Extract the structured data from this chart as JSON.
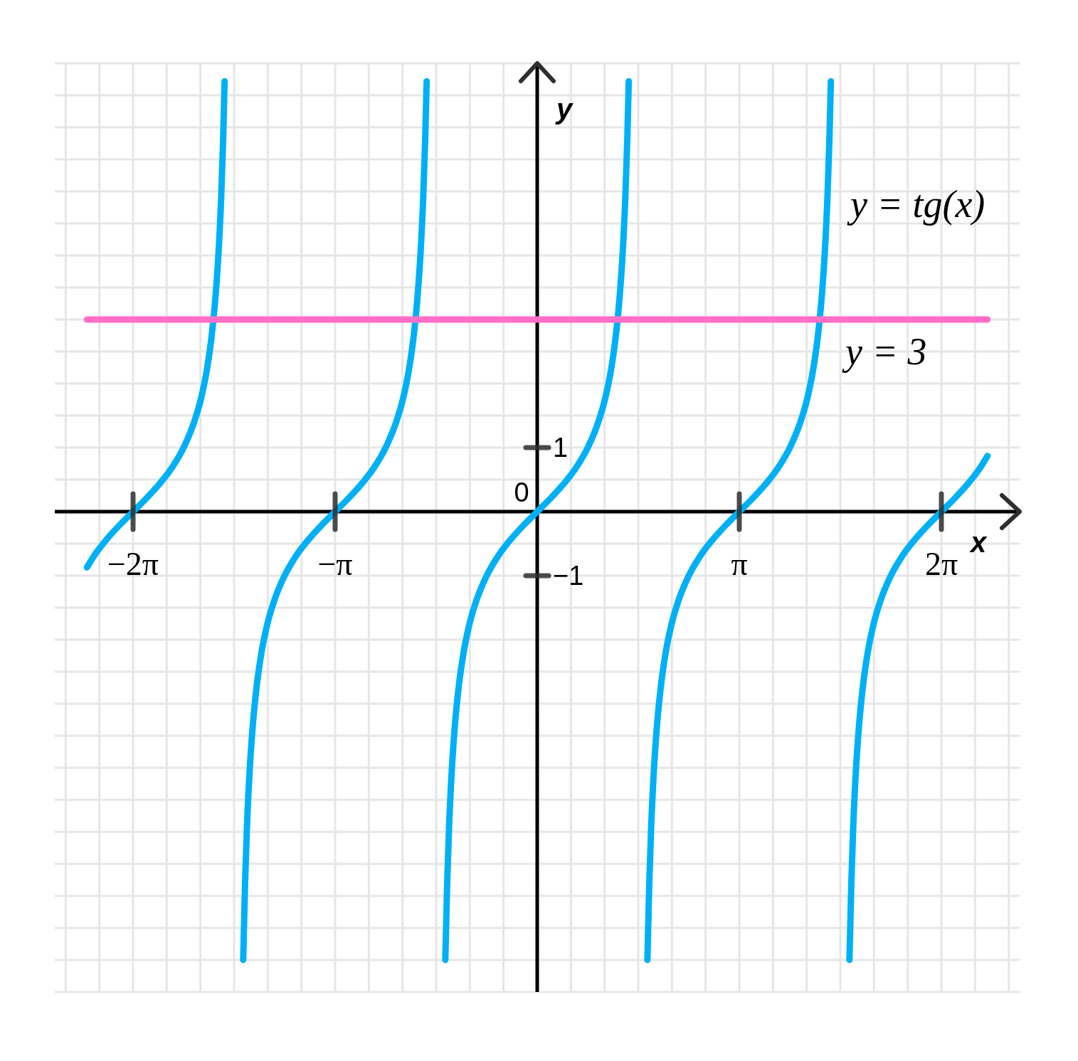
{
  "chart_data": {
    "type": "line",
    "xlabel": "x",
    "ylabel": "y",
    "xlim": [
      -7.5,
      7.5
    ],
    "ylim": [
      -7.5,
      7
    ],
    "xticks": [
      {
        "value": -7.3304,
        "label": null
      },
      {
        "value": -6.8068,
        "label": null
      },
      {
        "value": -6.2832,
        "label": "−2π"
      },
      {
        "value": -5.7596,
        "label": null
      },
      {
        "value": -5.236,
        "label": null
      },
      {
        "value": -4.7124,
        "label": null
      },
      {
        "value": -4.1888,
        "label": null
      },
      {
        "value": -3.6652,
        "label": null
      },
      {
        "value": -3.1416,
        "label": "−π"
      },
      {
        "value": -2.618,
        "label": null
      },
      {
        "value": -2.0944,
        "label": null
      },
      {
        "value": -1.5708,
        "label": null
      },
      {
        "value": -1.0472,
        "label": null
      },
      {
        "value": -0.5236,
        "label": null
      },
      {
        "value": 0,
        "label": null
      },
      {
        "value": 0.5236,
        "label": null
      },
      {
        "value": 1.0472,
        "label": null
      },
      {
        "value": 1.5708,
        "label": null
      },
      {
        "value": 2.0944,
        "label": null
      },
      {
        "value": 2.618,
        "label": null
      },
      {
        "value": 3.1416,
        "label": "π"
      },
      {
        "value": 3.6652,
        "label": null
      },
      {
        "value": 4.1888,
        "label": null
      },
      {
        "value": 4.7124,
        "label": null
      },
      {
        "value": 5.236,
        "label": null
      },
      {
        "value": 5.7596,
        "label": null
      },
      {
        "value": 6.2832,
        "label": "2π"
      },
      {
        "value": 6.8068,
        "label": null
      },
      {
        "value": 7.3304,
        "label": null
      }
    ],
    "yticks": [
      {
        "value": -7.5,
        "label": null
      },
      {
        "value": -7,
        "label": null
      },
      {
        "value": -6.5,
        "label": null
      },
      {
        "value": -6,
        "label": null
      },
      {
        "value": -5.5,
        "label": null
      },
      {
        "value": -5,
        "label": null
      },
      {
        "value": -4.5,
        "label": null
      },
      {
        "value": -4,
        "label": null
      },
      {
        "value": -3.5,
        "label": null
      },
      {
        "value": -3,
        "label": null
      },
      {
        "value": -2.5,
        "label": null
      },
      {
        "value": -2,
        "label": null
      },
      {
        "value": -1.5,
        "label": null
      },
      {
        "value": -1,
        "label": "−1"
      },
      {
        "value": -0.5,
        "label": null
      },
      {
        "value": 0,
        "label": null
      },
      {
        "value": 0.5,
        "label": null
      },
      {
        "value": 1,
        "label": "1"
      },
      {
        "value": 1.5,
        "label": null
      },
      {
        "value": 2,
        "label": null
      },
      {
        "value": 2.5,
        "label": null
      },
      {
        "value": 3,
        "label": null
      },
      {
        "value": 3.5,
        "label": null
      },
      {
        "value": 4,
        "label": null
      },
      {
        "value": 4.5,
        "label": null
      },
      {
        "value": 5,
        "label": null
      },
      {
        "value": 5.5,
        "label": null
      },
      {
        "value": 6,
        "label": null
      },
      {
        "value": 6.5,
        "label": null
      },
      {
        "value": 7,
        "label": null
      }
    ],
    "grid": true,
    "annotations": [
      {
        "text": "0",
        "x": 0,
        "y": 0
      }
    ],
    "series": [
      {
        "name": "y = tg(x)",
        "color": "#00b0f6",
        "x": [
          -7.0,
          -6.883,
          -6.683,
          -6.483,
          -6.283,
          -6.083,
          -5.883,
          -5.683,
          -5.483,
          -5.333,
          -5.233,
          -5.133,
          -5.063,
          -5.003,
          -4.953,
          -4.913,
          -4.883,
          -4.86,
          -4.712,
          -4.571,
          -4.542,
          -4.512,
          -4.472,
          -4.422,
          -4.362,
          -4.292,
          -4.192,
          -4.092,
          -3.942,
          -3.742,
          -3.542,
          -3.342,
          -3.142,
          -2.942,
          -2.742,
          -2.542,
          -2.342,
          -2.192,
          -2.092,
          -1.992,
          -1.922,
          -1.862,
          -1.812,
          -1.772,
          -1.742,
          -1.719,
          -1.571,
          -1.429,
          -1.4,
          -1.37,
          -1.33,
          -1.28,
          -1.22,
          -1.15,
          -1.05,
          -0.95,
          -0.8,
          -0.6,
          -0.4,
          -0.2,
          0,
          0.2,
          0.4,
          0.6,
          0.8,
          0.95,
          1.05,
          1.15,
          1.22,
          1.28,
          1.33,
          1.37,
          1.4,
          1.423,
          1.571,
          1.713,
          1.742,
          1.772,
          1.812,
          1.862,
          1.922,
          1.992,
          2.092,
          2.192,
          2.342,
          2.542,
          2.742,
          2.942,
          3.142,
          3.342,
          3.542,
          3.742,
          3.942,
          4.092,
          4.192,
          4.292,
          4.362,
          4.422,
          4.472,
          4.512,
          4.542,
          4.565,
          4.712,
          4.854,
          4.883,
          4.913,
          4.953,
          5.003,
          5.063,
          5.133,
          5.233,
          5.333,
          5.483,
          5.683,
          5.883,
          6.083,
          6.283,
          6.483,
          6.683,
          6.883,
          7.0
        ],
        "values": [
          -0.87,
          -0.68,
          -0.42,
          -0.2,
          0,
          0.2,
          0.42,
          0.68,
          1.03,
          1.4,
          1.74,
          2.23,
          2.73,
          3.34,
          4.07,
          4.91,
          5.8,
          6.72,
          null,
          -7,
          -5.8,
          -4.91,
          -4.07,
          -3.34,
          -2.73,
          -2.23,
          -1.74,
          -1.4,
          -1.03,
          -0.68,
          -0.42,
          -0.2,
          0,
          0.2,
          0.42,
          0.68,
          1.03,
          1.4,
          1.74,
          2.23,
          2.73,
          3.34,
          4.07,
          4.91,
          5.8,
          6.72,
          null,
          -7,
          -5.8,
          -4.91,
          -4.07,
          -3.34,
          -2.73,
          -2.23,
          -1.74,
          -1.4,
          -1.03,
          -0.68,
          -0.42,
          -0.2,
          0,
          0.2,
          0.42,
          0.68,
          1.03,
          1.4,
          1.74,
          2.23,
          2.73,
          3.34,
          4.07,
          4.91,
          5.8,
          6.72,
          null,
          -7,
          -5.8,
          -4.91,
          -4.07,
          -3.34,
          -2.73,
          -2.23,
          -1.74,
          -1.4,
          -1.03,
          -0.68,
          -0.42,
          -0.2,
          0,
          0.2,
          0.42,
          0.68,
          1.03,
          1.4,
          1.74,
          2.23,
          2.73,
          3.34,
          4.07,
          4.91,
          5.8,
          6.72,
          null,
          -7,
          -5.8,
          -4.91,
          -4.07,
          -3.34,
          -2.73,
          -2.23,
          -1.74,
          -1.4,
          -1.03,
          -0.68,
          -0.42,
          -0.2,
          0,
          0.2,
          0.42,
          0.68,
          0.87
        ]
      },
      {
        "name": "y = 3",
        "color": "#ff6ec7",
        "x": [
          -7,
          7
        ],
        "values": [
          3,
          3
        ]
      }
    ]
  }
}
